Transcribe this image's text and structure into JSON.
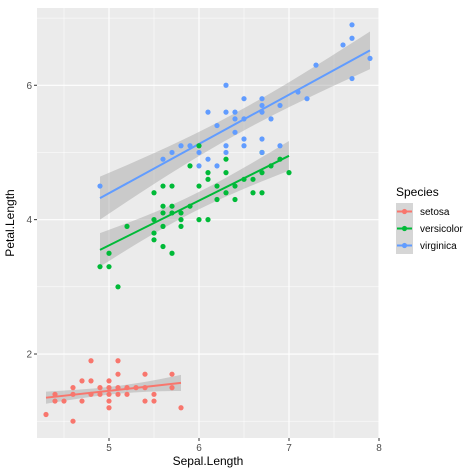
{
  "chart_data": {
    "type": "scatter",
    "xlabel": "Sepal.Length",
    "ylabel": "Petal.Length",
    "xlim": [
      4.2,
      8.0
    ],
    "ylim": [
      0.75,
      7.15
    ],
    "xticks": [
      5,
      6,
      7,
      8
    ],
    "yticks": [
      2,
      4,
      6
    ],
    "grid": true,
    "legend_title": "Species",
    "legend_position": "right",
    "smooth": "linear regression with confidence band",
    "series": [
      {
        "name": "setosa",
        "color": "#F8766D",
        "points": [
          [
            4.3,
            1.1
          ],
          [
            4.4,
            1.3
          ],
          [
            4.4,
            1.4
          ],
          [
            4.5,
            1.3
          ],
          [
            4.6,
            1.0
          ],
          [
            4.6,
            1.4
          ],
          [
            4.6,
            1.5
          ],
          [
            4.7,
            1.3
          ],
          [
            4.7,
            1.6
          ],
          [
            4.8,
            1.4
          ],
          [
            4.8,
            1.6
          ],
          [
            4.8,
            1.9
          ],
          [
            4.9,
            1.4
          ],
          [
            4.9,
            1.5
          ],
          [
            5.0,
            1.2
          ],
          [
            5.0,
            1.3
          ],
          [
            5.0,
            1.4
          ],
          [
            5.0,
            1.5
          ],
          [
            5.0,
            1.6
          ],
          [
            5.1,
            1.4
          ],
          [
            5.1,
            1.5
          ],
          [
            5.1,
            1.7
          ],
          [
            5.1,
            1.9
          ],
          [
            5.2,
            1.4
          ],
          [
            5.2,
            1.5
          ],
          [
            5.3,
            1.5
          ],
          [
            5.4,
            1.3
          ],
          [
            5.4,
            1.5
          ],
          [
            5.4,
            1.7
          ],
          [
            5.5,
            1.3
          ],
          [
            5.5,
            1.4
          ],
          [
            5.7,
            1.5
          ],
          [
            5.7,
            1.7
          ],
          [
            5.8,
            1.2
          ]
        ],
        "fit": {
          "x": [
            4.3,
            5.8
          ],
          "y": [
            1.35,
            1.57
          ],
          "ci": [
            0.09,
            0.12
          ]
        }
      },
      {
        "name": "versicolor",
        "color": "#00BA38",
        "points": [
          [
            4.9,
            3.3
          ],
          [
            5.0,
            3.3
          ],
          [
            5.0,
            3.5
          ],
          [
            5.1,
            3.0
          ],
          [
            5.2,
            3.9
          ],
          [
            5.5,
            4.0
          ],
          [
            5.5,
            3.7
          ],
          [
            5.5,
            3.8
          ],
          [
            5.5,
            4.4
          ],
          [
            5.6,
            3.6
          ],
          [
            5.6,
            3.9
          ],
          [
            5.6,
            4.1
          ],
          [
            5.6,
            4.2
          ],
          [
            5.6,
            4.5
          ],
          [
            5.7,
            3.5
          ],
          [
            5.7,
            4.1
          ],
          [
            5.7,
            4.2
          ],
          [
            5.7,
            4.5
          ],
          [
            5.8,
            3.9
          ],
          [
            5.8,
            4.0
          ],
          [
            5.8,
            4.1
          ],
          [
            5.9,
            4.2
          ],
          [
            5.9,
            4.8
          ],
          [
            6.0,
            4.0
          ],
          [
            6.0,
            4.5
          ],
          [
            6.0,
            5.1
          ],
          [
            6.1,
            4.0
          ],
          [
            6.1,
            4.6
          ],
          [
            6.1,
            4.7
          ],
          [
            6.2,
            4.3
          ],
          [
            6.2,
            4.5
          ],
          [
            6.3,
            4.4
          ],
          [
            6.3,
            4.7
          ],
          [
            6.3,
            4.9
          ],
          [
            6.4,
            4.3
          ],
          [
            6.4,
            4.5
          ],
          [
            6.5,
            4.6
          ],
          [
            6.6,
            4.4
          ],
          [
            6.6,
            4.6
          ],
          [
            6.7,
            4.4
          ],
          [
            6.7,
            4.7
          ],
          [
            6.7,
            5.0
          ],
          [
            6.8,
            4.8
          ],
          [
            6.9,
            4.9
          ],
          [
            7.0,
            4.7
          ]
        ],
        "fit": {
          "x": [
            4.9,
            7.0
          ],
          "y": [
            3.55,
            4.95
          ],
          "ci": [
            0.25,
            0.22
          ]
        }
      },
      {
        "name": "virginica",
        "color": "#619CFF",
        "points": [
          [
            4.9,
            4.5
          ],
          [
            5.6,
            4.9
          ],
          [
            5.7,
            5.0
          ],
          [
            5.8,
            5.1
          ],
          [
            5.9,
            5.1
          ],
          [
            6.0,
            5.0
          ],
          [
            6.0,
            4.8
          ],
          [
            6.1,
            5.6
          ],
          [
            6.1,
            4.9
          ],
          [
            6.2,
            4.8
          ],
          [
            6.2,
            5.4
          ],
          [
            6.3,
            5.0
          ],
          [
            6.3,
            5.1
          ],
          [
            6.3,
            5.6
          ],
          [
            6.3,
            6.0
          ],
          [
            6.4,
            5.3
          ],
          [
            6.4,
            5.5
          ],
          [
            6.4,
            5.6
          ],
          [
            6.5,
            5.1
          ],
          [
            6.5,
            5.2
          ],
          [
            6.5,
            5.5
          ],
          [
            6.5,
            5.8
          ],
          [
            6.7,
            5.0
          ],
          [
            6.7,
            5.2
          ],
          [
            6.7,
            5.6
          ],
          [
            6.7,
            5.7
          ],
          [
            6.7,
            5.8
          ],
          [
            6.8,
            5.5
          ],
          [
            6.9,
            5.1
          ],
          [
            6.9,
            5.7
          ],
          [
            7.1,
            5.9
          ],
          [
            7.2,
            5.8
          ],
          [
            7.3,
            6.3
          ],
          [
            7.6,
            6.6
          ],
          [
            7.7,
            6.1
          ],
          [
            7.7,
            6.7
          ],
          [
            7.7,
            6.9
          ],
          [
            7.9,
            6.4
          ]
        ],
        "fit": {
          "x": [
            4.9,
            7.9
          ],
          "y": [
            4.32,
            6.52
          ],
          "ci": [
            0.32,
            0.28
          ]
        }
      }
    ]
  }
}
